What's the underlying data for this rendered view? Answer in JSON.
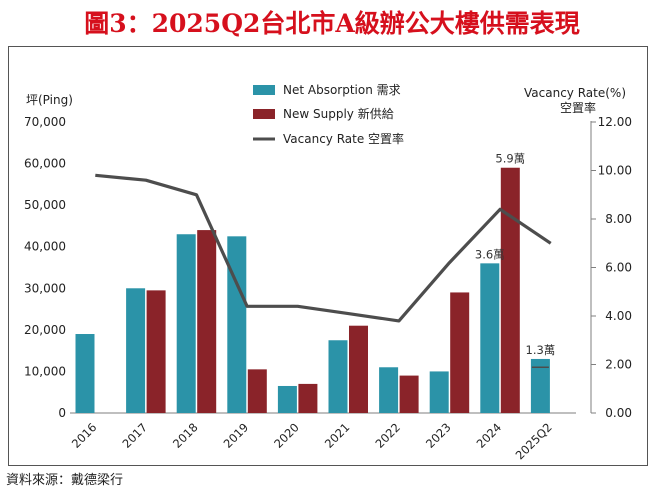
{
  "page": {
    "title": "圖3：2025Q2台北市A級辦公大樓供需表現",
    "source": "資料來源：戴德梁行"
  },
  "colors": {
    "title": "#d6101d",
    "net_absorption": "#2b93a8",
    "new_supply": "#8a2329",
    "vacancy_rate": "#4d4d4d"
  },
  "chart_data": {
    "type": "bar",
    "title": "2025Q2台北市A級辦公大樓供需表現",
    "categories": [
      "2016",
      "2017",
      "2018",
      "2019",
      "2020",
      "2021",
      "2022",
      "2023",
      "2024",
      "2025Q2"
    ],
    "series": [
      {
        "name": "Net Absorption 需求",
        "kind": "bar",
        "axis": "left",
        "values": [
          19000,
          30000,
          43000,
          42500,
          6500,
          17500,
          11000,
          10000,
          36000,
          13000
        ]
      },
      {
        "name": "New Supply 新供給",
        "kind": "bar",
        "axis": "left",
        "values": [
          0,
          29500,
          44000,
          10500,
          7000,
          21000,
          9000,
          29000,
          59000,
          0
        ]
      },
      {
        "name": "Vacancy Rate 空置率",
        "kind": "line",
        "axis": "right",
        "values": [
          9.8,
          9.6,
          9.0,
          4.4,
          4.4,
          4.1,
          3.8,
          6.2,
          8.4,
          7.0
        ]
      }
    ],
    "ylabel": "坪(Ping)",
    "y2label_en": "Vacancy Rate(%)",
    "y2label_zh": "空置率",
    "ylim": [
      0,
      70000
    ],
    "y2lim": [
      0,
      12
    ],
    "yticks": [
      0,
      10000,
      20000,
      30000,
      40000,
      50000,
      60000,
      70000
    ],
    "ytick_labels": [
      "0",
      "10,000",
      "20,000",
      "30,000",
      "40,000",
      "50,000",
      "60,000",
      "70,000"
    ],
    "y2ticks": [
      0,
      2,
      4,
      6,
      8,
      10,
      12
    ],
    "y2tick_labels": [
      "0.00",
      "2.00",
      "4.00",
      "6.00",
      "8.00",
      "10.00",
      "12.00"
    ],
    "annotations": [
      {
        "text": "5.9萬",
        "category": "2024",
        "series": "New Supply 新供給"
      },
      {
        "text": "3.6萬",
        "category": "2024",
        "series": "Net Absorption 需求"
      },
      {
        "text": "1.3萬",
        "category": "2025Q2",
        "series": "Net Absorption 需求"
      }
    ],
    "legend": "top-center",
    "grid": false
  }
}
